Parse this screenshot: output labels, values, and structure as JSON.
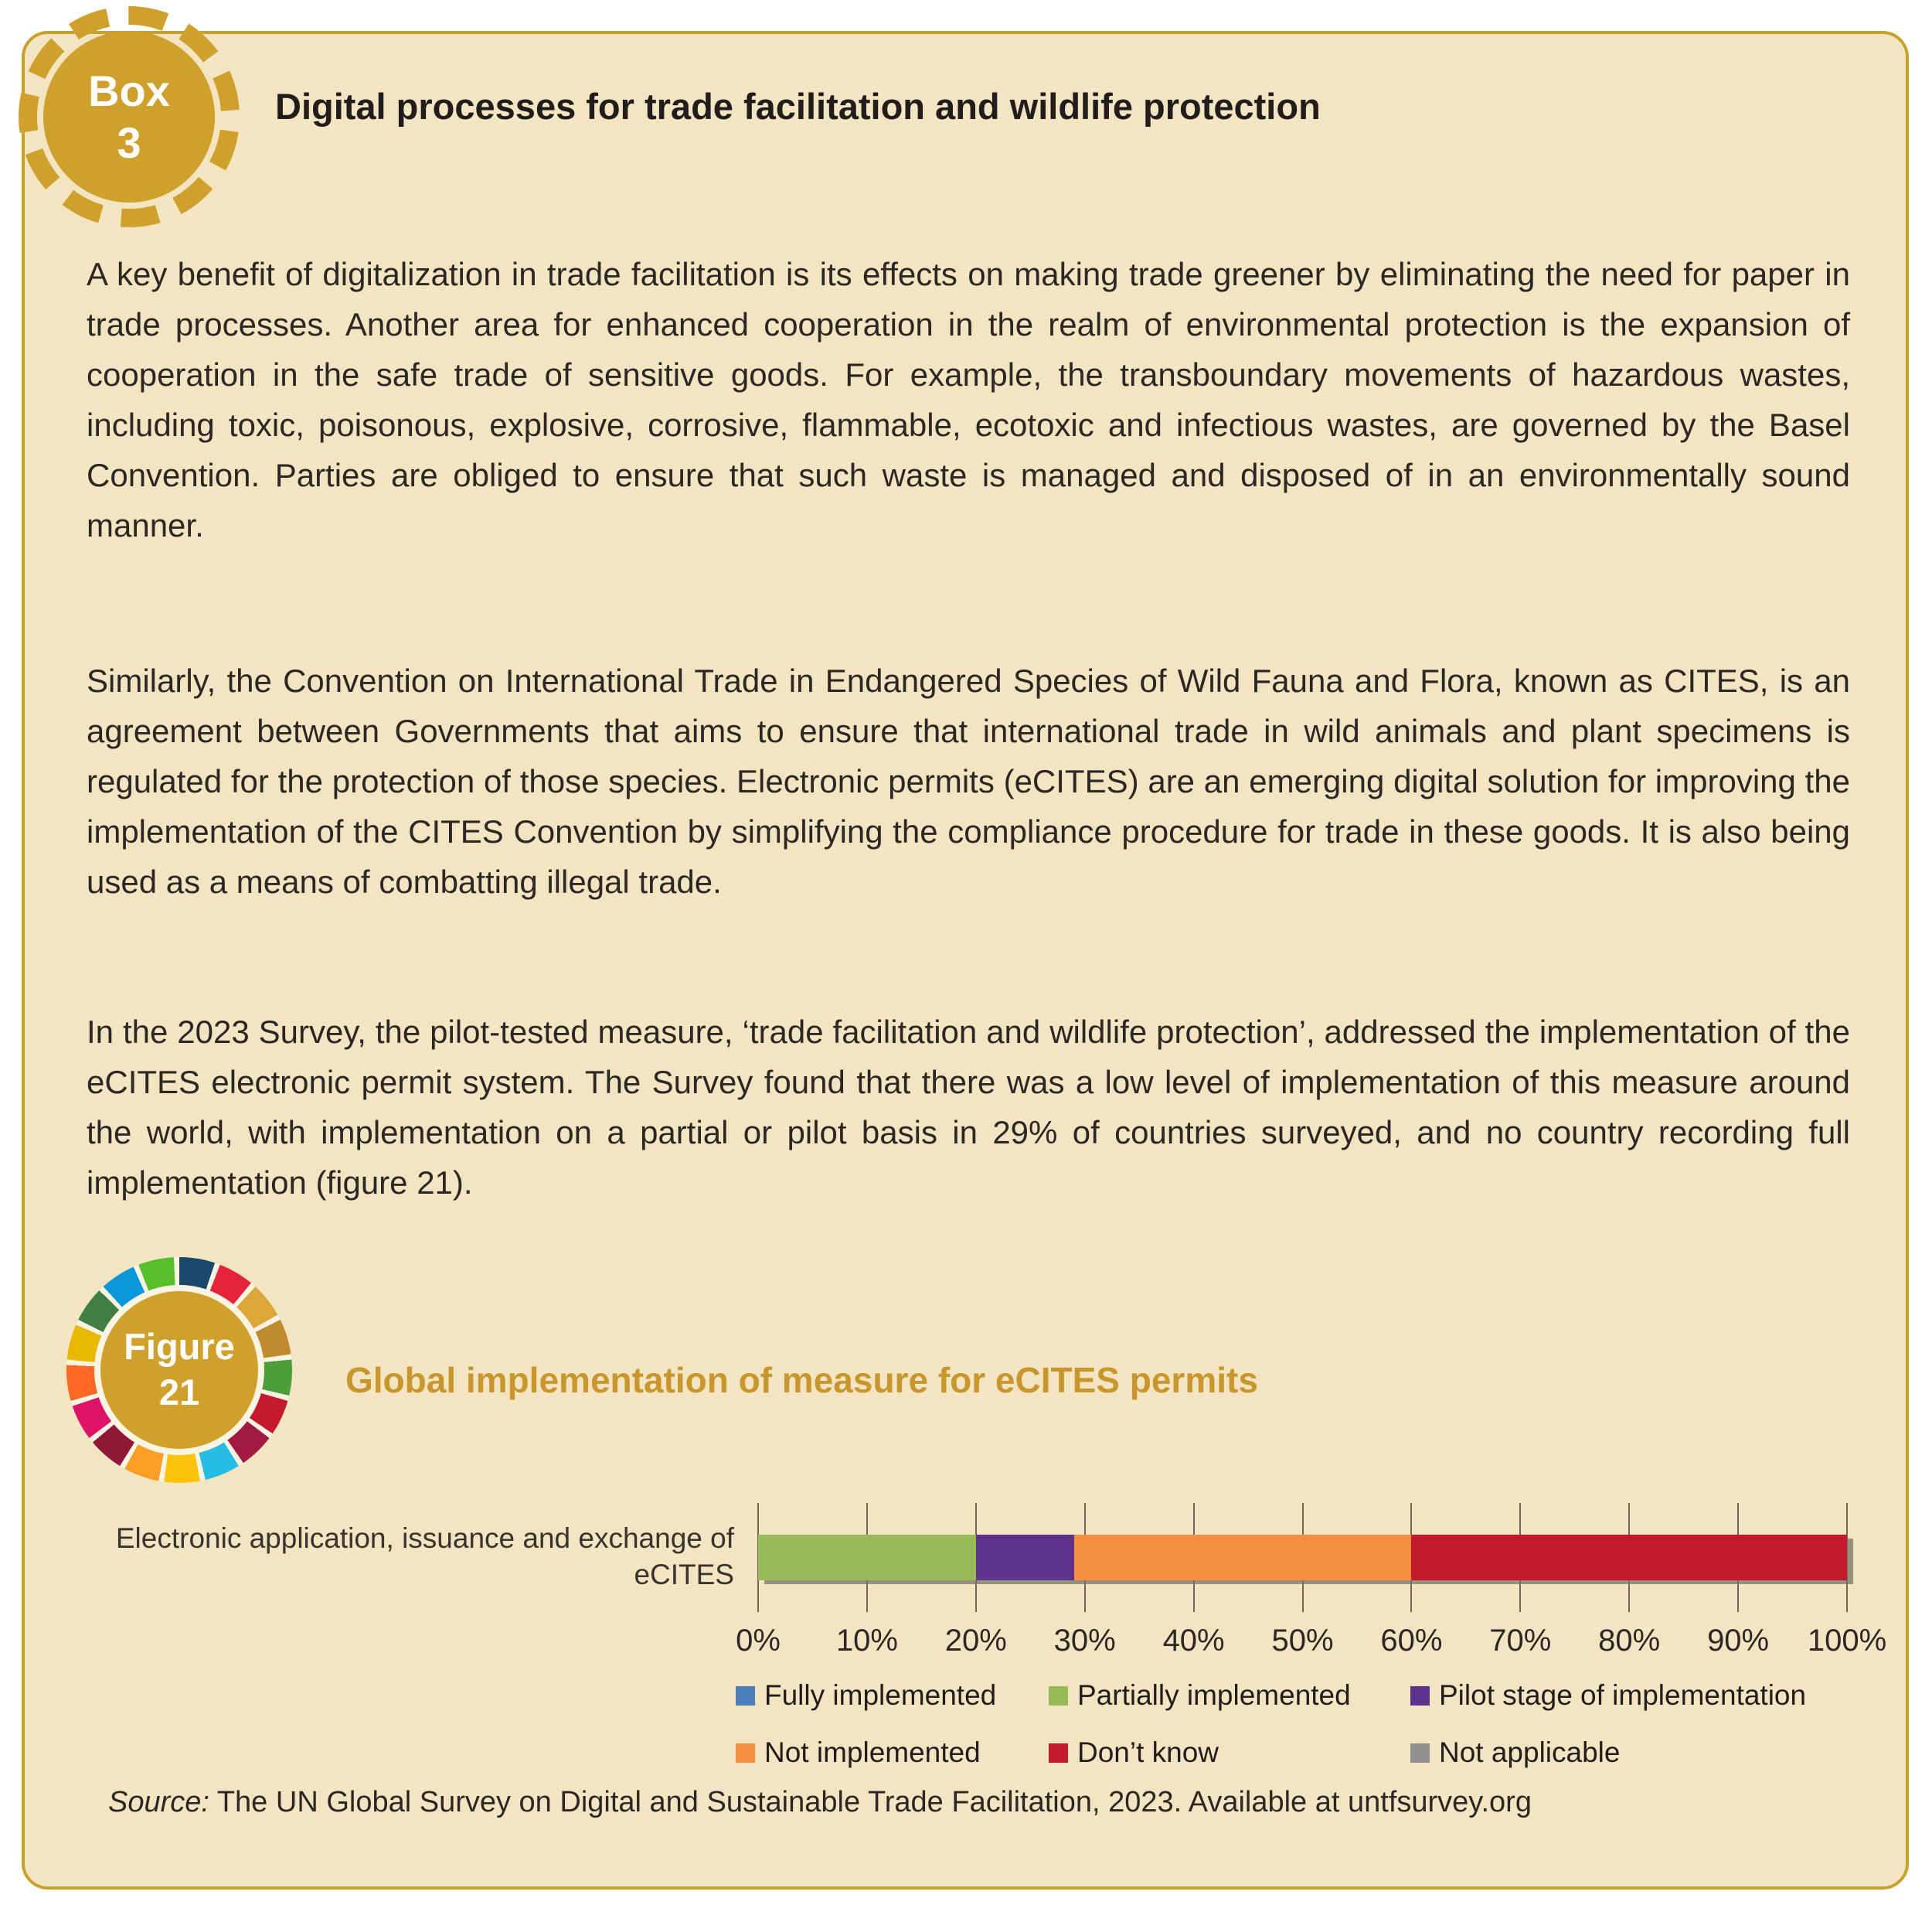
{
  "box": {
    "badge_line1": "Box",
    "badge_line2": "3",
    "title": "Digital processes for trade facilitation and wildlife protection"
  },
  "paragraphs": {
    "p1": "A key benefit of digitalization in trade facilitation is its effects on making trade greener by eliminating the need for paper in trade processes. Another area for enhanced cooperation in the realm of environmental protection is the expansion of cooperation in the safe trade of sensitive goods. For example, the transboundary movements of hazardous wastes, including toxic, poisonous, explosive, corrosive, flammable, ecotoxic and infectious wastes, are governed by the Basel Convention. Parties are obliged to ensure that such waste is managed and disposed of in an environmentally sound manner.",
    "p2": "Similarly, the Convention on International Trade in Endangered Species of Wild Fauna and Flora, known as CITES, is an agreement between Governments that aims to ensure that international trade in wild animals and plant specimens is regulated for the protection of those species. Electronic permits (eCITES) are an emerging digital solution for improving the implementation of the CITES Convention by simplifying the compliance procedure for trade in these goods. It is also being used as a means of combatting illegal trade.",
    "p3": "In the 2023 Survey, the pilot-tested measure, ‘trade facilitation and wildlife protection’, addressed the implementation of the eCITES electronic permit system. The Survey found that there was a low level of implementation of this measure around the world, with implementation on a partial or pilot basis in 29% of countries surveyed, and no country recording full implementation (figure 21)."
  },
  "figure": {
    "badge_line1": "Figure",
    "badge_line2": "21",
    "title": "Global implementation of measure for eCITES permits",
    "ring_colors": [
      "#19486A",
      "#E5243B",
      "#DDA63A",
      "#BF8B2E",
      "#4C9F38",
      "#C5192D",
      "#A21942",
      "#26BDE2",
      "#FCC30B",
      "#FD9D24",
      "#8F1838",
      "#DD1367",
      "#FD6925",
      "#E8B700",
      "#3F7E44",
      "#0A97D9",
      "#56C02B"
    ]
  },
  "chart_data": {
    "type": "bar",
    "subtype": "horizontal-stacked-100pct",
    "category": "Electronic application, issuance and exchange of eCITES",
    "series": [
      {
        "name": "Fully implemented",
        "value": 0,
        "color": "#4A7EBB"
      },
      {
        "name": "Partially implemented",
        "value": 20,
        "color": "#96BA58"
      },
      {
        "name": "Pilot stage of implementation",
        "value": 9,
        "color": "#5F328E"
      },
      {
        "name": "Not implemented",
        "value": 31,
        "color": "#F78F42"
      },
      {
        "name": "Don’t know",
        "value": 40,
        "color": "#C11A2B"
      },
      {
        "name": "Not applicable",
        "value": 0,
        "color": "#8E9092"
      }
    ],
    "xlim": [
      0,
      100
    ],
    "tick_labels": [
      "0%",
      "10%",
      "20%",
      "30%",
      "40%",
      "50%",
      "60%",
      "70%",
      "80%",
      "90%",
      "100%"
    ],
    "grid": "vertical-ticks",
    "legend_position": "bottom"
  },
  "source": {
    "prefix": "Source:",
    "text": " The UN Global Survey on Digital and Sustainable Trade Facilitation, 2023. Available at untfsurvey.org"
  }
}
